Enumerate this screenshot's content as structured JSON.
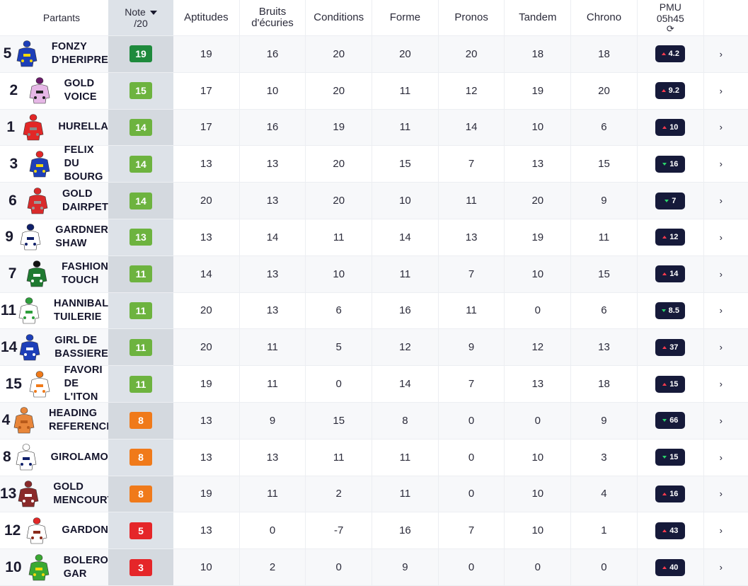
{
  "header": {
    "partants": "Partants",
    "note_line1": "Note",
    "note_line2": "/20",
    "aptitudes": "Aptitudes",
    "bruits_line1": "Bruits",
    "bruits_line2": "d'écuries",
    "conditions": "Conditions",
    "forme": "Forme",
    "pronos": "Pronos",
    "tandem": "Tandem",
    "chrono": "Chrono",
    "pmu_line1": "PMU",
    "pmu_line2": "05h45"
  },
  "colors": {
    "green_dark": "#1e8a3c",
    "green": "#6db33f",
    "orange": "#f07a1a",
    "red": "#e52629",
    "odds_bg": "#161a3a"
  },
  "rows": [
    {
      "num": "5",
      "name": "FONZY D'HERIPRE",
      "note": "19",
      "note_color": "#1e8a3c",
      "apt": "19",
      "bruits": "16",
      "cond": "20",
      "forme": "20",
      "pronos": "20",
      "tandem": "18",
      "chrono": "18",
      "odds": "4.2",
      "trend": "up",
      "silk": "blue-yellow"
    },
    {
      "num": "2",
      "name": "GOLD VOICE",
      "note": "15",
      "note_color": "#6db33f",
      "apt": "17",
      "bruits": "10",
      "cond": "20",
      "forme": "11",
      "pronos": "12",
      "tandem": "19",
      "chrono": "20",
      "odds": "9.2",
      "trend": "up",
      "silk": "pink-spots"
    },
    {
      "num": "1",
      "name": "HURELLA",
      "note": "14",
      "note_color": "#6db33f",
      "apt": "17",
      "bruits": "16",
      "cond": "19",
      "forme": "11",
      "pronos": "14",
      "tandem": "10",
      "chrono": "6",
      "odds": "10",
      "trend": "up",
      "silk": "red-grey"
    },
    {
      "num": "3",
      "name": "FELIX DU BOURG",
      "note": "14",
      "note_color": "#6db33f",
      "apt": "13",
      "bruits": "13",
      "cond": "20",
      "forme": "15",
      "pronos": "7",
      "tandem": "13",
      "chrono": "15",
      "odds": "16",
      "trend": "down",
      "silk": "blue-star"
    },
    {
      "num": "6",
      "name": "GOLD DAIRPET",
      "note": "14",
      "note_color": "#6db33f",
      "apt": "20",
      "bruits": "13",
      "cond": "20",
      "forme": "10",
      "pronos": "11",
      "tandem": "20",
      "chrono": "9",
      "odds": "7",
      "trend": "down",
      "silk": "red-grey2"
    },
    {
      "num": "9",
      "name": "GARDNER SHAW",
      "note": "13",
      "note_color": "#6db33f",
      "apt": "13",
      "bruits": "14",
      "cond": "11",
      "forme": "14",
      "pronos": "13",
      "tandem": "19",
      "chrono": "11",
      "odds": "12",
      "trend": "up",
      "silk": "white-navy"
    },
    {
      "num": "7",
      "name": "FASHION TOUCH",
      "note": "11",
      "note_color": "#6db33f",
      "apt": "14",
      "bruits": "13",
      "cond": "10",
      "forme": "11",
      "pronos": "7",
      "tandem": "10",
      "chrono": "15",
      "odds": "14",
      "trend": "up",
      "silk": "green-white"
    },
    {
      "num": "11",
      "name": "HANNIBAL TUILERIE",
      "note": "11",
      "note_color": "#6db33f",
      "apt": "20",
      "bruits": "13",
      "cond": "6",
      "forme": "16",
      "pronos": "11",
      "tandem": "0",
      "chrono": "6",
      "odds": "8.5",
      "trend": "down",
      "silk": "white-green-stars"
    },
    {
      "num": "14",
      "name": "GIRL DE BASSIERE",
      "note": "11",
      "note_color": "#6db33f",
      "apt": "20",
      "bruits": "11",
      "cond": "5",
      "forme": "12",
      "pronos": "9",
      "tandem": "12",
      "chrono": "13",
      "odds": "37",
      "trend": "up",
      "silk": "blue-white-spots"
    },
    {
      "num": "15",
      "name": "FAVORI DE L'ITON",
      "note": "11",
      "note_color": "#6db33f",
      "apt": "19",
      "bruits": "11",
      "cond": "0",
      "forme": "14",
      "pronos": "7",
      "tandem": "13",
      "chrono": "18",
      "odds": "15",
      "trend": "up",
      "silk": "white-orange-cross"
    },
    {
      "num": "4",
      "name": "HEADING REFERENCE",
      "note": "8",
      "note_color": "#f07a1a",
      "apt": "13",
      "bruits": "9",
      "cond": "15",
      "forme": "8",
      "pronos": "0",
      "tandem": "0",
      "chrono": "9",
      "odds": "66",
      "trend": "down",
      "silk": "orange"
    },
    {
      "num": "8",
      "name": "GIROLAMO",
      "note": "8",
      "note_color": "#f07a1a",
      "apt": "13",
      "bruits": "13",
      "cond": "11",
      "forme": "11",
      "pronos": "0",
      "tandem": "10",
      "chrono": "3",
      "odds": "15",
      "trend": "down",
      "silk": "white-navy-stripe"
    },
    {
      "num": "13",
      "name": "GOLD MENCOURT",
      "note": "8",
      "note_color": "#f07a1a",
      "apt": "19",
      "bruits": "11",
      "cond": "2",
      "forme": "11",
      "pronos": "0",
      "tandem": "10",
      "chrono": "4",
      "odds": "16",
      "trend": "up",
      "silk": "maroon-white"
    },
    {
      "num": "12",
      "name": "GARDON",
      "note": "5",
      "note_color": "#e52629",
      "apt": "13",
      "bruits": "0",
      "cond": "-7",
      "forme": "16",
      "pronos": "7",
      "tandem": "10",
      "chrono": "1",
      "odds": "43",
      "trend": "up",
      "silk": "white-brown-sash"
    },
    {
      "num": "10",
      "name": "BOLERO GAR",
      "note": "3",
      "note_color": "#e52629",
      "apt": "10",
      "bruits": "2",
      "cond": "0",
      "forme": "9",
      "pronos": "0",
      "tandem": "0",
      "chrono": "0",
      "odds": "40",
      "trend": "up",
      "silk": "green-yellow"
    }
  ]
}
